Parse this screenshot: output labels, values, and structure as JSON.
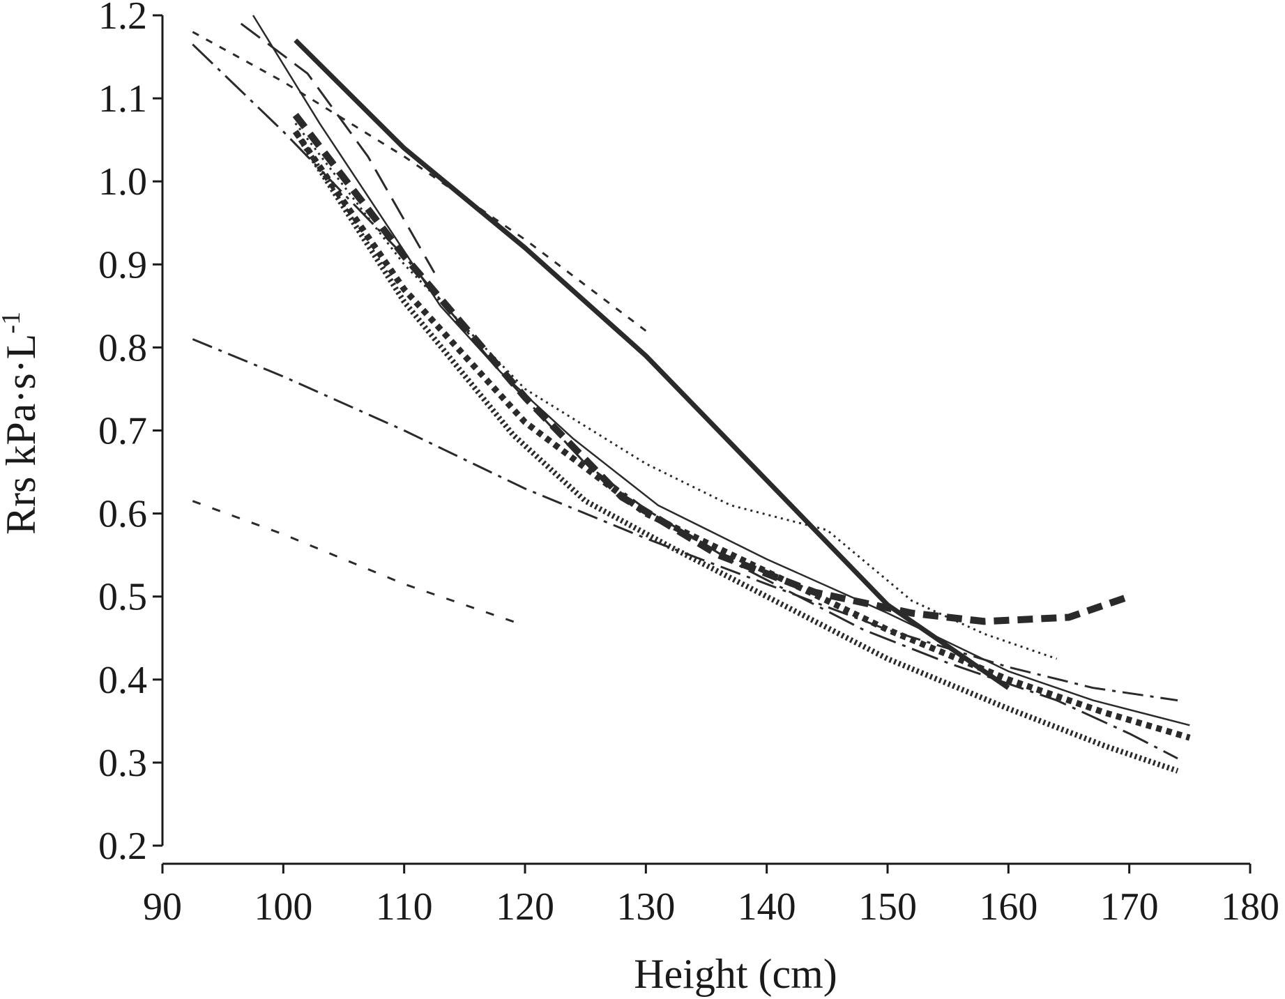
{
  "chart_data": {
    "type": "line",
    "xlabel": "Height (cm)",
    "ylabel_main": "Rrs kPa·s·L",
    "ylabel_sup": "-1",
    "xlim": [
      90,
      180
    ],
    "ylim": [
      0.2,
      1.2
    ],
    "x_ticks": [
      "90",
      "100",
      "110",
      "120",
      "130",
      "140",
      "150",
      "160",
      "170",
      "180"
    ],
    "y_ticks": [
      "0.2",
      "0.3",
      "0.4",
      "0.5",
      "0.6",
      "0.7",
      "0.8",
      "0.9",
      "1.0",
      "1.1",
      "1.2"
    ],
    "grid": false,
    "series": [
      {
        "style": "solid-thick",
        "x": [
          101,
          110,
          120,
          130,
          140,
          150,
          160
        ],
        "y": [
          1.17,
          1.04,
          0.92,
          0.79,
          0.64,
          0.49,
          0.39
        ]
      },
      {
        "style": "solid-thin",
        "x": [
          97.5,
          103,
          108,
          113,
          118,
          124,
          131,
          140,
          150,
          160,
          167,
          175
        ],
        "y": [
          1.2,
          1.07,
          0.96,
          0.85,
          0.77,
          0.69,
          0.61,
          0.545,
          0.48,
          0.41,
          0.375,
          0.345
        ]
      },
      {
        "style": "short-dash",
        "x": [
          92.5,
          100,
          110,
          120,
          125,
          130
        ],
        "y": [
          1.18,
          1.12,
          1.03,
          0.93,
          0.875,
          0.82
        ]
      },
      {
        "style": "long-dash",
        "x": [
          96.5,
          102,
          107,
          112.5
        ],
        "y": [
          1.19,
          1.13,
          1.03,
          0.89
        ]
      },
      {
        "style": "long-dash-dot",
        "x": [
          92.5,
          100,
          110,
          118,
          125,
          130,
          138,
          148,
          155,
          160,
          164,
          170,
          174
        ],
        "y": [
          1.165,
          1.06,
          0.91,
          0.77,
          0.66,
          0.605,
          0.535,
          0.46,
          0.42,
          0.395,
          0.375,
          0.335,
          0.305
        ]
      },
      {
        "style": "dash-dot",
        "x": [
          92.5,
          100,
          110,
          120,
          130,
          140,
          150,
          160,
          167,
          174
        ],
        "y": [
          0.81,
          0.765,
          0.7,
          0.63,
          0.57,
          0.515,
          0.46,
          0.415,
          0.39,
          0.375
        ]
      },
      {
        "style": "sparse-dash",
        "x": [
          92.5,
          100,
          110,
          120
        ],
        "y": [
          0.615,
          0.575,
          0.515,
          0.465
        ]
      },
      {
        "style": "thick-dash",
        "x": [
          101,
          110,
          120,
          128,
          136,
          144,
          152,
          158,
          165,
          170
        ],
        "y": [
          1.08,
          0.91,
          0.74,
          0.62,
          0.55,
          0.505,
          0.48,
          0.47,
          0.475,
          0.5
        ]
      },
      {
        "style": "fine-dot",
        "x": [
          101,
          110,
          120,
          130,
          137,
          145,
          152,
          158,
          164
        ],
        "y": [
          1.07,
          0.9,
          0.75,
          0.66,
          0.61,
          0.58,
          0.495,
          0.455,
          0.425
        ]
      },
      {
        "style": "thick-dot",
        "x": [
          101,
          110,
          120,
          130,
          140,
          150,
          160,
          168,
          175
        ],
        "y": [
          1.06,
          0.87,
          0.71,
          0.6,
          0.53,
          0.46,
          0.4,
          0.36,
          0.33
        ]
      },
      {
        "style": "dense-dot",
        "x": [
          101,
          110,
          119,
          125,
          132,
          140,
          150,
          160,
          168,
          174
        ],
        "y": [
          1.06,
          0.855,
          0.695,
          0.615,
          0.56,
          0.5,
          0.425,
          0.365,
          0.32,
          0.29
        ]
      }
    ]
  }
}
